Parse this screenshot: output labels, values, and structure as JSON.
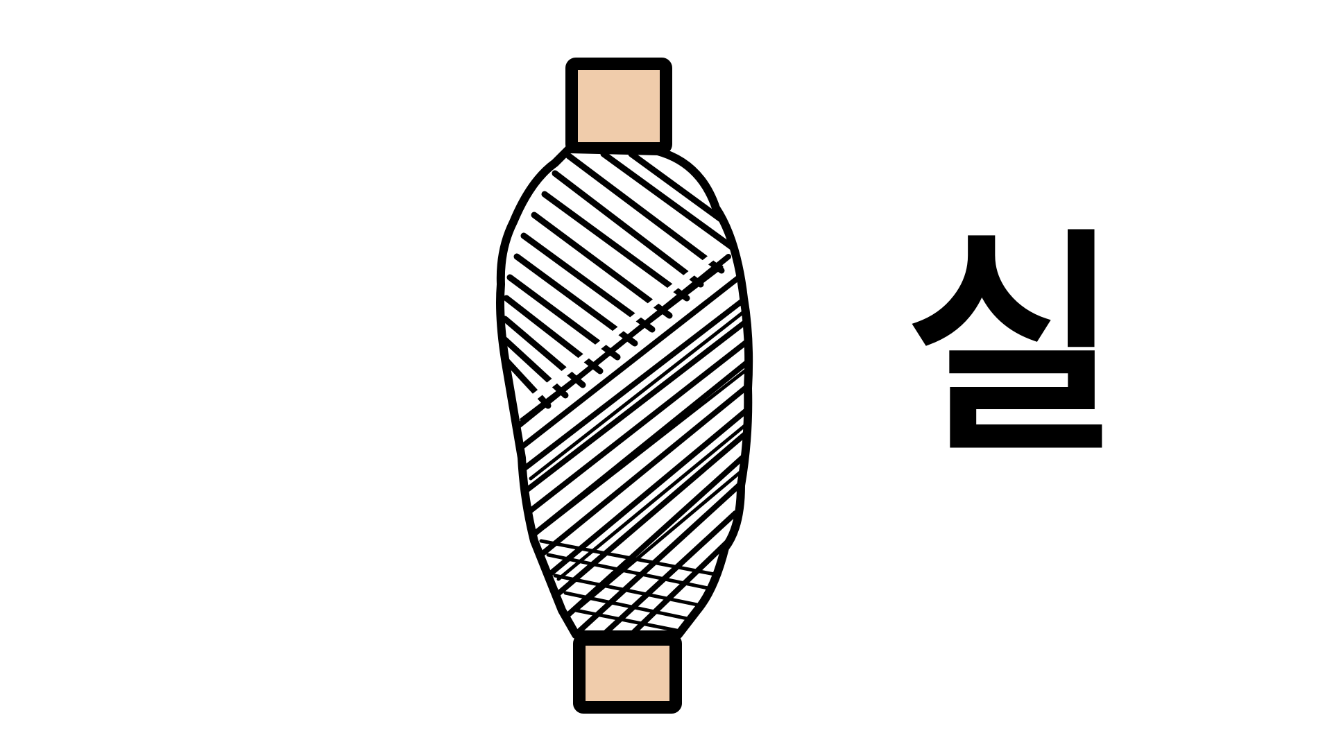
{
  "illustration": {
    "icon": "thread-spool-icon",
    "colors": {
      "outline": "#000000",
      "wood": "#f0ccab",
      "thread": "#ffffff"
    }
  },
  "label": {
    "text": "실"
  }
}
